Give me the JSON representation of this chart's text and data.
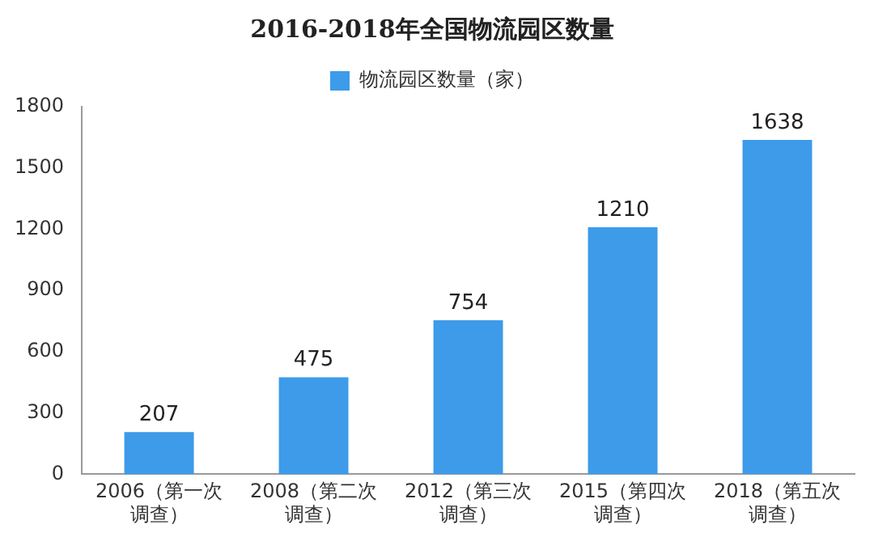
{
  "chart_data": {
    "type": "bar",
    "title": "2016-2018年全国物流园区数量",
    "categories": [
      "2006（第一次调查）",
      "2008（第二次调查）",
      "2012（第三次调查）",
      "2015（第四次调查）",
      "2018（第五次调查）"
    ],
    "series": [
      {
        "name": "物流园区数量（家）",
        "color": "#3d9be9",
        "values": [
          207,
          475,
          754,
          1210,
          1638
        ]
      }
    ],
    "ylim": [
      0,
      1800
    ],
    "yticks": [
      0,
      300,
      600,
      900,
      1200,
      1500,
      1800
    ],
    "grid": false,
    "legend": "top",
    "data_labels": true
  }
}
